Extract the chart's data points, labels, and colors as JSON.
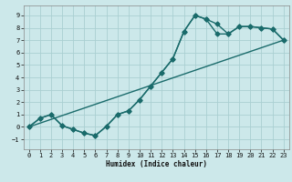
{
  "xlabel": "Humidex (Indice chaleur)",
  "xlim": [
    -0.5,
    23.5
  ],
  "ylim": [
    -1.8,
    9.8
  ],
  "xticks": [
    0,
    1,
    2,
    3,
    4,
    5,
    6,
    7,
    8,
    9,
    10,
    11,
    12,
    13,
    14,
    15,
    16,
    17,
    18,
    19,
    20,
    21,
    22,
    23
  ],
  "yticks": [
    -1,
    0,
    1,
    2,
    3,
    4,
    5,
    6,
    7,
    8,
    9
  ],
  "bg_color": "#cce8ea",
  "grid_color": "#aacfd2",
  "line_color": "#1a6b6b",
  "line1_x": [
    0,
    1,
    2,
    3,
    4,
    5,
    6,
    7,
    8,
    9,
    10,
    11,
    12,
    13,
    14,
    15,
    16,
    17,
    18,
    19,
    20,
    21,
    22,
    23
  ],
  "line1_y": [
    0.0,
    0.7,
    1.0,
    0.1,
    -0.2,
    -0.5,
    -0.7,
    0.05,
    1.0,
    1.3,
    2.2,
    3.3,
    4.4,
    5.5,
    7.7,
    9.0,
    8.7,
    8.3,
    7.5,
    8.1,
    8.1,
    8.0,
    7.9,
    7.0
  ],
  "line2_x": [
    0,
    23
  ],
  "line2_y": [
    0.0,
    7.0
  ],
  "line3_x": [
    0,
    1,
    2,
    3,
    4,
    5,
    6,
    7,
    8,
    9,
    10,
    11,
    12,
    13,
    14,
    15,
    16,
    17,
    18,
    19,
    20,
    21,
    22,
    23
  ],
  "line3_y": [
    0.0,
    0.7,
    1.0,
    0.1,
    -0.2,
    -0.5,
    -0.7,
    0.05,
    1.0,
    1.3,
    2.2,
    3.3,
    4.4,
    5.5,
    7.7,
    9.0,
    8.7,
    7.5,
    7.5,
    8.1,
    8.1,
    8.0,
    7.9,
    7.0
  ],
  "marker": "D",
  "markersize": 2.5,
  "linewidth": 1.0
}
